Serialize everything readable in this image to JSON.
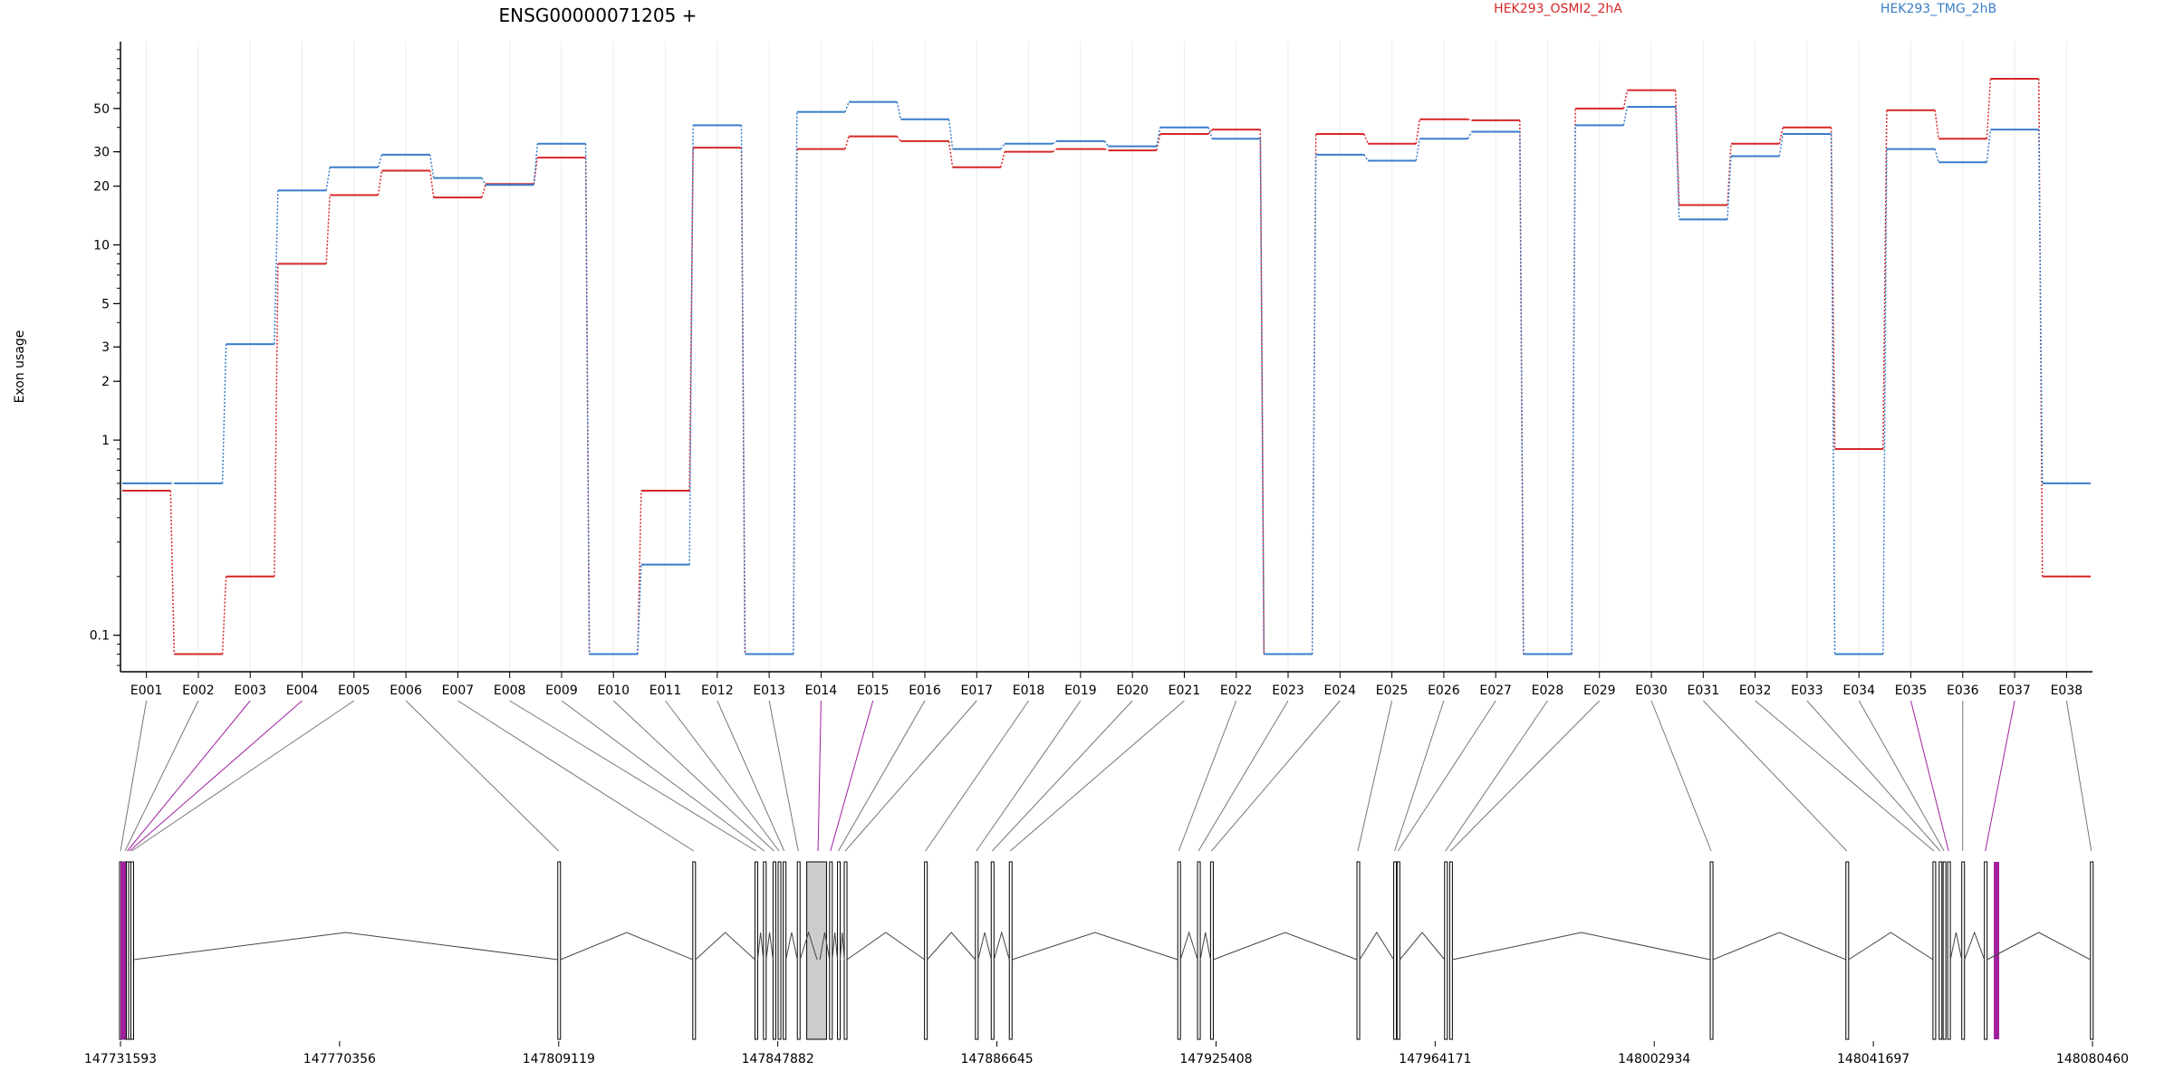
{
  "chart_data": {
    "type": "line",
    "title": "ENSG00000071205 +",
    "ylabel": "Exon usage",
    "xlabel": "",
    "y_scale": "log",
    "ylim": [
      0.065,
      110
    ],
    "grid": "vertical",
    "legend_position": "top-right",
    "categories": [
      "E001",
      "E002",
      "E003",
      "E004",
      "E005",
      "E006",
      "E007",
      "E008",
      "E009",
      "E010",
      "E011",
      "E012",
      "E013",
      "E014",
      "E015",
      "E016",
      "E017",
      "E018",
      "E019",
      "E020",
      "E021",
      "E022",
      "E023",
      "E024",
      "E025",
      "E026",
      "E027",
      "E028",
      "E029",
      "E030",
      "E031",
      "E032",
      "E033",
      "E034",
      "E035",
      "E036",
      "E037",
      "E038"
    ],
    "y_ticks": [
      0.1,
      1,
      2,
      3,
      5,
      10,
      20,
      30,
      50
    ],
    "y_tick_labels": [
      "0.1",
      "1",
      "2",
      "3",
      "5",
      "10",
      "20",
      "30",
      "50"
    ],
    "series": [
      {
        "name": "HEK293_OSMI2_2hA",
        "color": "#d62728",
        "values": [
          0.55,
          0.08,
          0.2,
          8,
          18,
          24,
          17.5,
          20.5,
          28,
          0.08,
          0.55,
          31.5,
          0.08,
          31,
          36,
          34,
          25,
          30,
          31,
          30.5,
          37,
          39,
          0.08,
          37,
          33,
          44,
          43.5,
          0.08,
          50,
          62,
          16,
          33,
          40,
          0.9,
          49,
          35,
          71,
          0.2
        ]
      },
      {
        "name": "HEK293_TMG_2hB",
        "color": "#3a7dc9",
        "values": [
          0.6,
          0.6,
          3.1,
          19,
          25,
          29,
          22,
          20.3,
          33,
          0.08,
          0.23,
          41,
          0.08,
          48,
          54,
          44,
          31,
          33,
          34,
          32,
          40,
          35,
          0.08,
          29,
          27,
          35,
          38,
          0.08,
          41,
          51,
          13.5,
          28.5,
          37,
          0.08,
          31,
          26.5,
          39,
          0.6
        ]
      }
    ],
    "genomic_axis": {
      "start": 147731593,
      "end": 148080460,
      "tick_labels": [
        "147731593",
        "147770356",
        "147809119",
        "147847882",
        "147886645",
        "147925408",
        "147964171",
        "148002934",
        "148041697",
        "148080460"
      ]
    }
  }
}
